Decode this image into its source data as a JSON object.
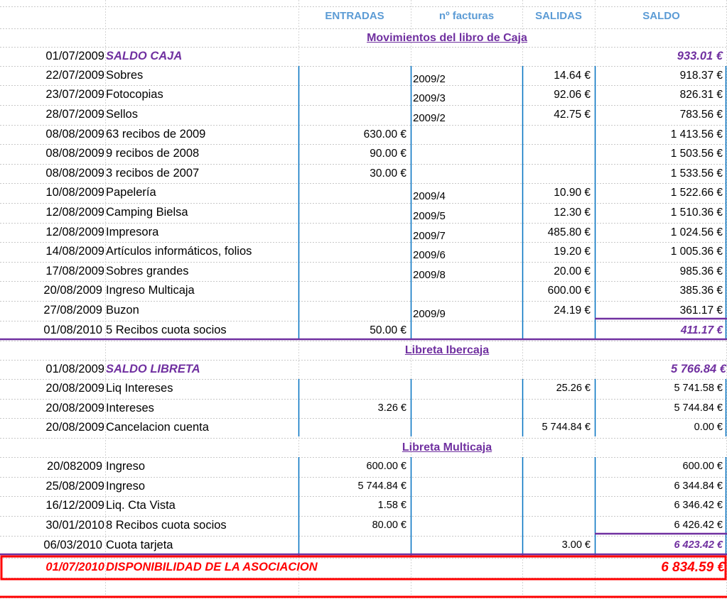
{
  "headers": {
    "entradas": "ENTRADAS",
    "facturas": "nº facturas",
    "salidas": "SALIDAS",
    "saldo": "SALDO"
  },
  "sections": {
    "caja": {
      "title": "Movimientos del libro de Caja",
      "opening": {
        "date": "01/07/2009",
        "label": "SALDO CAJA",
        "saldo": "933.01 €"
      },
      "rows": [
        {
          "date": "22/07/2009",
          "desc": "Sobres",
          "entradas": "",
          "factura": "2009/2",
          "salidas": "14.64 €",
          "saldo": "918.37 €"
        },
        {
          "date": "23/07/2009",
          "desc": "Fotocopias",
          "entradas": "",
          "factura": "2009/3",
          "salidas": "92.06 €",
          "saldo": "826.31 €"
        },
        {
          "date": "28/07/2009",
          "desc": "Sellos",
          "entradas": "",
          "factura": "2009/2",
          "salidas": "42.75 €",
          "saldo": "783.56 €"
        },
        {
          "date": "08/08/2009",
          "desc": "63 recibos de 2009",
          "entradas": "630.00 €",
          "factura": "",
          "salidas": "",
          "saldo": "1 413.56 €"
        },
        {
          "date": "08/08/2009",
          "desc": "9 recibos de 2008",
          "entradas": "90.00 €",
          "factura": "",
          "salidas": "",
          "saldo": "1 503.56 €"
        },
        {
          "date": "08/08/2009",
          "desc": "3 recibos de 2007",
          "entradas": "30.00 €",
          "factura": "",
          "salidas": "",
          "saldo": "1 533.56 €"
        },
        {
          "date": "10/08/2009",
          "desc": "Papelería",
          "entradas": "",
          "factura": "2009/4",
          "salidas": "10.90 €",
          "saldo": "1 522.66 €"
        },
        {
          "date": "12/08/2009",
          "desc": "Camping Bielsa",
          "entradas": "",
          "factura": "2009/5",
          "salidas": "12.30 €",
          "saldo": "1 510.36 €"
        },
        {
          "date": "12/08/2009",
          "desc": "Impresora",
          "entradas": "",
          "factura": "2009/7",
          "salidas": "485.80 €",
          "saldo": "1 024.56 €"
        },
        {
          "date": "14/08/2009",
          "desc": "Artículos informáticos, folios",
          "entradas": "",
          "factura": "2009/6",
          "salidas": "19.20 €",
          "saldo": "1 005.36 €"
        },
        {
          "date": "17/08/2009",
          "desc": "Sobres grandes",
          "entradas": "",
          "factura": "2009/8",
          "salidas": "20.00 €",
          "saldo": "985.36 €"
        },
        {
          "date": "20/08/2009",
          "desc": "Ingreso Multicaja",
          "entradas": "",
          "factura": "",
          "salidas": "600.00 €",
          "saldo": "385.36 €"
        },
        {
          "date": "27/08/2009",
          "desc": "Buzon",
          "entradas": "",
          "factura": "2009/9",
          "salidas": "24.19 €",
          "saldo": "361.17 €"
        },
        {
          "date": "01/08/2010",
          "desc": "5 Recibos cuota socios",
          "entradas": "50.00 €",
          "factura": "",
          "salidas": "",
          "saldo": "411.17 €"
        }
      ]
    },
    "ibercaja": {
      "title": "Libreta Ibercaja",
      "opening": {
        "date": "01/08/2009",
        "label": "SALDO LIBRETA",
        "saldo": "5 766.84 €"
      },
      "rows": [
        {
          "date": "20/08/2009",
          "desc": "Liq Intereses",
          "entradas": "",
          "factura": "",
          "salidas": "25.26 €",
          "saldo": "5 741.58 €"
        },
        {
          "date": "20/08/2009",
          "desc": "Intereses",
          "entradas": "3.26 €",
          "factura": "",
          "salidas": "",
          "saldo": "5 744.84 €"
        },
        {
          "date": "20/08/2009",
          "desc": "Cancelacion cuenta",
          "entradas": "",
          "factura": "",
          "salidas": "5 744.84 €",
          "saldo": "0.00 €"
        }
      ]
    },
    "multicaja": {
      "title": "Libreta Multicaja",
      "rows": [
        {
          "date": "20/082009",
          "desc": " Ingreso",
          "entradas": "600.00 €",
          "factura": "",
          "salidas": "",
          "saldo": "600.00 €"
        },
        {
          "date": "25/08/2009",
          "desc": "Ingreso",
          "entradas": "5 744.84 €",
          "factura": "",
          "salidas": "",
          "saldo": "6 344.84 €"
        },
        {
          "date": "16/12/2009",
          "desc": "Liq. Cta Vista",
          "entradas": "1.58 €",
          "factura": "",
          "salidas": "",
          "saldo": "6 346.42 €"
        },
        {
          "date": "30/01/2010",
          "desc": "8 Recibos cuota socios",
          "entradas": "80.00 €",
          "factura": "",
          "salidas": "",
          "saldo": "6 426.42 €"
        },
        {
          "date": "06/03/2010",
          "desc": "Cuota tarjeta",
          "entradas": "",
          "factura": "",
          "salidas": "3.00 €",
          "saldo": "6 423.42 €"
        }
      ]
    }
  },
  "total": {
    "date": "01/07/2010",
    "label": "DISPONIBILIDAD DE LA ASOCIACION",
    "saldo": "6 834.59 €"
  },
  "colors": {
    "header": "#5b9bd5",
    "accent": "#7030a0",
    "total": "#ff0000",
    "rule": "#0070c0"
  }
}
